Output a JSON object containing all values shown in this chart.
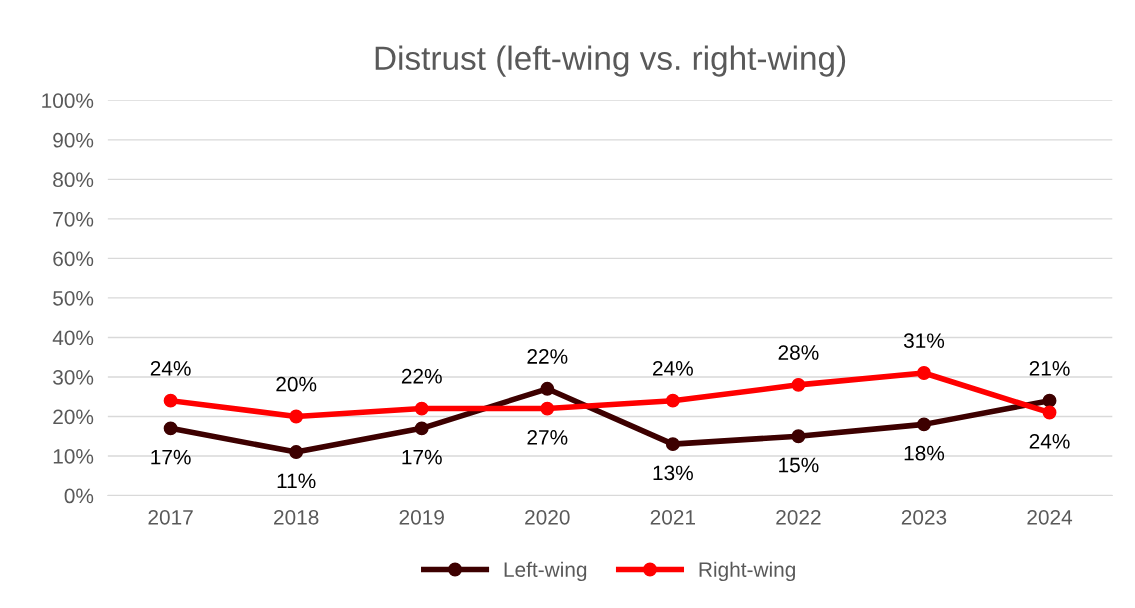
{
  "chart_data": {
    "type": "line",
    "title": "Distrust (left-wing vs. right-wing)",
    "categories": [
      "2017",
      "2018",
      "2019",
      "2020",
      "2021",
      "2022",
      "2023",
      "2024"
    ],
    "series": [
      {
        "name": "Left-wing",
        "color": "#3d0000",
        "values": [
          17,
          11,
          17,
          27,
          13,
          15,
          18,
          24
        ],
        "value_labels": [
          "17%",
          "11%",
          "17%",
          "27%",
          "13%",
          "15%",
          "18%",
          "24%"
        ]
      },
      {
        "name": "Right-wing",
        "color": "#ff0000",
        "values": [
          24,
          20,
          22,
          22,
          24,
          28,
          31,
          21
        ],
        "value_labels": [
          "24%",
          "20%",
          "22%",
          "22%",
          "24%",
          "28%",
          "31%",
          "21%"
        ]
      }
    ],
    "ylim": [
      0,
      100
    ],
    "yticks": [
      {
        "value": 0,
        "label": "0%"
      },
      {
        "value": 10,
        "label": "10%"
      },
      {
        "value": 20,
        "label": "20%"
      },
      {
        "value": 30,
        "label": "30%"
      },
      {
        "value": 40,
        "label": "40%"
      },
      {
        "value": 50,
        "label": "50%"
      },
      {
        "value": 60,
        "label": "60%"
      },
      {
        "value": 70,
        "label": "70%"
      },
      {
        "value": 80,
        "label": "80%"
      },
      {
        "value": 90,
        "label": "90%"
      },
      {
        "value": 100,
        "label": "100%"
      }
    ],
    "grid": "y",
    "legend": "bottom",
    "marker": "circle",
    "line_style": "solid"
  }
}
